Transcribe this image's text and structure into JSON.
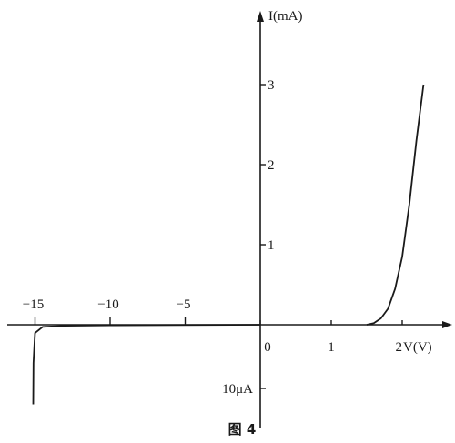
{
  "chart_data": {
    "type": "line",
    "caption": "图 4",
    "y_axis_label": "I(mA)",
    "x_axis_label": "V(V)",
    "y_scale_note": "10μA",
    "x_ticks_positive": [
      {
        "value": 0,
        "label": "0"
      },
      {
        "value": 1,
        "label": "1"
      },
      {
        "value": 2,
        "label": "2"
      }
    ],
    "x_ticks_negative": [
      {
        "value": -15,
        "label": "−15"
      },
      {
        "value": -10,
        "label": "−10"
      },
      {
        "value": -5,
        "label": "−5"
      }
    ],
    "y_ticks": [
      {
        "value": 1,
        "label": "1"
      },
      {
        "value": 2,
        "label": "2"
      },
      {
        "value": 3,
        "label": "3"
      }
    ],
    "forward_curve": {
      "unit_v": "V",
      "unit_i": "mA",
      "points": [
        [
          1.5,
          0
        ],
        [
          1.6,
          0.02
        ],
        [
          1.7,
          0.08
        ],
        [
          1.8,
          0.2
        ],
        [
          1.9,
          0.45
        ],
        [
          2.0,
          0.85
        ],
        [
          2.1,
          1.5
        ],
        [
          2.2,
          2.3
        ],
        [
          2.3,
          3.0
        ]
      ]
    },
    "reverse_curve": {
      "unit_v": "V",
      "unit_i": "μA",
      "points": [
        [
          0,
          0
        ],
        [
          -10,
          -0.08
        ],
        [
          -13,
          -0.15
        ],
        [
          -14.5,
          -0.35
        ],
        [
          -15,
          -1.3
        ],
        [
          -15.1,
          -6
        ],
        [
          -15.12,
          -12.5
        ]
      ]
    }
  }
}
